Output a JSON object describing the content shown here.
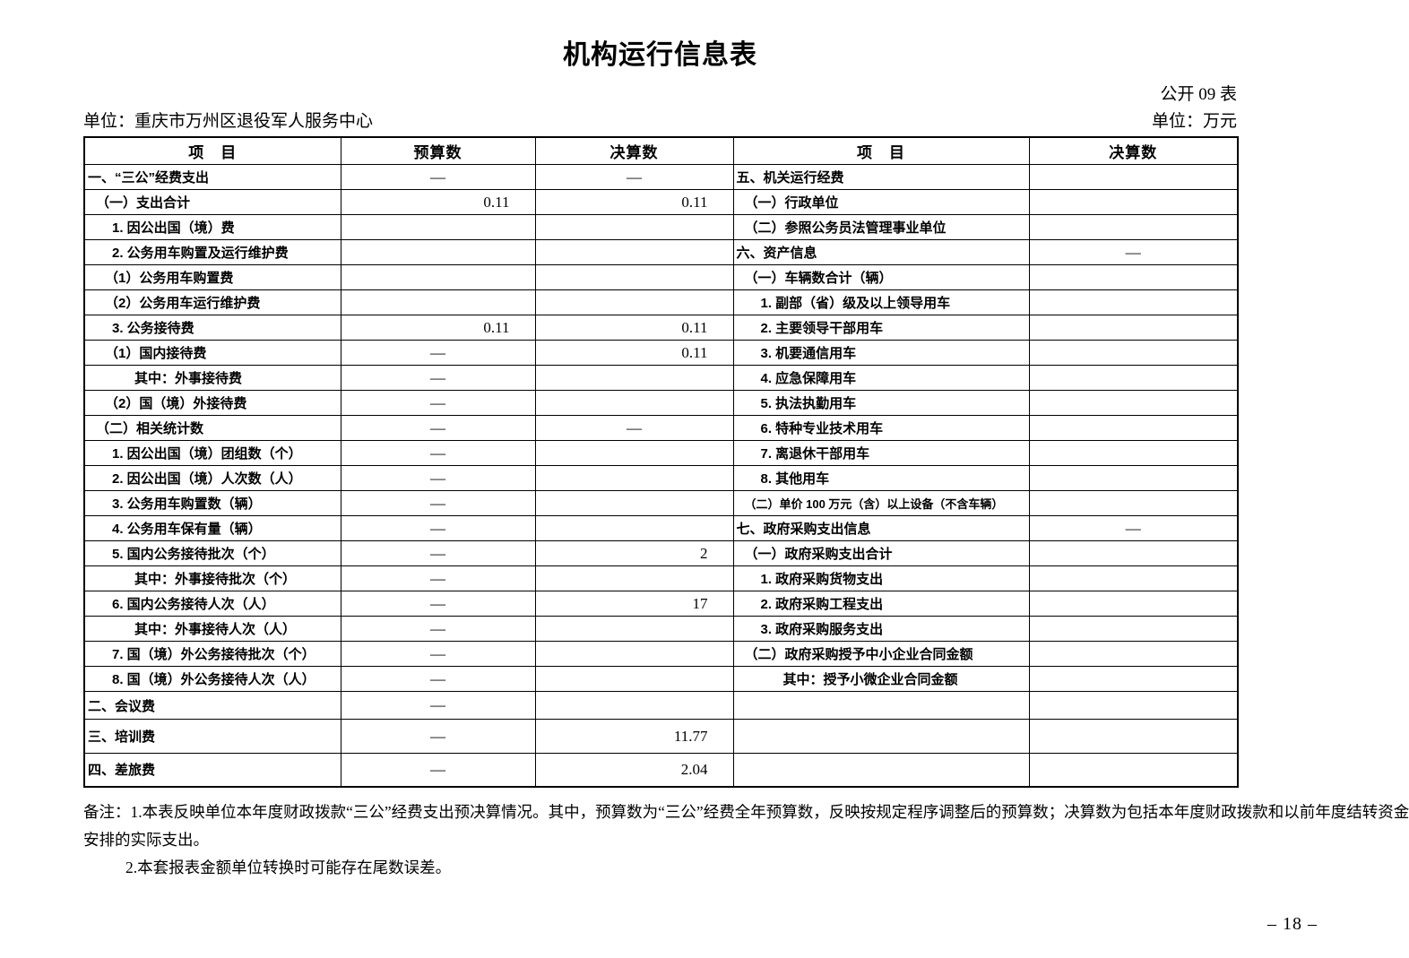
{
  "page": {
    "title": "机构运行信息表",
    "form_code": "公开 09 表",
    "unit_name": "单位：重庆市万州区退役军人服务中心",
    "unit_currency": "单位：万元",
    "page_number": "– 18 –"
  },
  "table": {
    "headers": [
      "项　目",
      "预算数",
      "决算数",
      "项　目",
      "决算数"
    ],
    "rows": [
      {
        "left": {
          "label": "一、“三公”经费支出",
          "indent": 0,
          "budget": "—",
          "final": "—"
        },
        "right": {
          "label": "五、机关运行经费",
          "indent": 0,
          "final": ""
        }
      },
      {
        "left": {
          "label": "（一）支出合计",
          "indent": 1,
          "budget": "0.11",
          "final": "0.11"
        },
        "right": {
          "label": "（一）行政单位",
          "indent": 1,
          "final": ""
        }
      },
      {
        "left": {
          "label": "1. 因公出国（境）费",
          "indent": 3,
          "budget": "",
          "final": ""
        },
        "right": {
          "label": "（二）参照公务员法管理事业单位",
          "indent": 1,
          "final": ""
        }
      },
      {
        "left": {
          "label": "2. 公务用车购置及运行维护费",
          "indent": 3,
          "budget": "",
          "final": ""
        },
        "right": {
          "label": "六、资产信息",
          "indent": 0,
          "final": "—"
        }
      },
      {
        "left": {
          "label": "（1）公务用车购置费",
          "indent": 2,
          "budget": "",
          "final": ""
        },
        "right": {
          "label": "（一）车辆数合计（辆）",
          "indent": 1,
          "final": ""
        }
      },
      {
        "left": {
          "label": "（2）公务用车运行维护费",
          "indent": 2,
          "budget": "",
          "final": ""
        },
        "right": {
          "label": "1. 副部（省）级及以上领导用车",
          "indent": 3,
          "final": ""
        }
      },
      {
        "left": {
          "label": "3. 公务接待费",
          "indent": 3,
          "budget": "0.11",
          "final": "0.11"
        },
        "right": {
          "label": "2. 主要领导干部用车",
          "indent": 3,
          "final": ""
        }
      },
      {
        "left": {
          "label": "（1）国内接待费",
          "indent": 2,
          "budget": "—",
          "final": "0.11"
        },
        "right": {
          "label": "3. 机要通信用车",
          "indent": 3,
          "final": ""
        }
      },
      {
        "left": {
          "label": "其中：外事接待费",
          "indent": 4,
          "budget": "—",
          "final": ""
        },
        "right": {
          "label": "4. 应急保障用车",
          "indent": 3,
          "final": ""
        }
      },
      {
        "left": {
          "label": "（2）国（境）外接待费",
          "indent": 2,
          "budget": "—",
          "final": ""
        },
        "right": {
          "label": "5. 执法执勤用车",
          "indent": 3,
          "final": ""
        }
      },
      {
        "left": {
          "label": "（二）相关统计数",
          "indent": 1,
          "budget": "—",
          "final": "—"
        },
        "right": {
          "label": "6. 特种专业技术用车",
          "indent": 3,
          "final": ""
        }
      },
      {
        "left": {
          "label": "1. 因公出国（境）团组数（个）",
          "indent": 3,
          "budget": "—",
          "final": ""
        },
        "right": {
          "label": "7. 离退休干部用车",
          "indent": 3,
          "final": ""
        }
      },
      {
        "left": {
          "label": "2. 因公出国（境）人次数（人）",
          "indent": 3,
          "budget": "—",
          "final": ""
        },
        "right": {
          "label": "8. 其他用车",
          "indent": 3,
          "final": ""
        }
      },
      {
        "left": {
          "label": "3. 公务用车购置数（辆）",
          "indent": 3,
          "budget": "—",
          "final": ""
        },
        "right": {
          "label": "（二）单价 100 万元（含）以上设备（不含车辆）",
          "indent": 1,
          "final": ""
        }
      },
      {
        "left": {
          "label": "4. 公务用车保有量（辆）",
          "indent": 3,
          "budget": "—",
          "final": ""
        },
        "right": {
          "label": "七、政府采购支出信息",
          "indent": 0,
          "final": "—"
        }
      },
      {
        "left": {
          "label": "5. 国内公务接待批次（个）",
          "indent": 3,
          "budget": "—",
          "final": "2"
        },
        "right": {
          "label": "（一）政府采购支出合计",
          "indent": 1,
          "final": ""
        }
      },
      {
        "left": {
          "label": "其中：外事接待批次（个）",
          "indent": 4,
          "budget": "—",
          "final": ""
        },
        "right": {
          "label": "1. 政府采购货物支出",
          "indent": 3,
          "final": ""
        }
      },
      {
        "left": {
          "label": "6. 国内公务接待人次（人）",
          "indent": 3,
          "budget": "—",
          "final": "17"
        },
        "right": {
          "label": "2. 政府采购工程支出",
          "indent": 3,
          "final": ""
        }
      },
      {
        "left": {
          "label": "其中：外事接待人次（人）",
          "indent": 4,
          "budget": "—",
          "final": ""
        },
        "right": {
          "label": "3. 政府采购服务支出",
          "indent": 3,
          "final": ""
        }
      },
      {
        "left": {
          "label": "7. 国（境）外公务接待批次（个）",
          "indent": 3,
          "budget": "—",
          "final": ""
        },
        "right": {
          "label": "（二）政府采购授予中小企业合同金额",
          "indent": 1,
          "final": ""
        }
      },
      {
        "left": {
          "label": "8. 国（境）外公务接待人次（人）",
          "indent": 3,
          "budget": "—",
          "final": ""
        },
        "right": {
          "label": "其中：授予小微企业合同金额",
          "indent": 4,
          "final": ""
        }
      },
      {
        "left": {
          "label": "二、会议费",
          "indent": 0,
          "budget": "—",
          "final": ""
        },
        "right": {
          "label": "",
          "indent": 0,
          "final": ""
        }
      },
      {
        "left": {
          "label": "三、培训费",
          "indent": 0,
          "budget": "—",
          "final": "11.77"
        },
        "right": {
          "label": "",
          "indent": 0,
          "final": ""
        }
      },
      {
        "left": {
          "label": "四、差旅费",
          "indent": 0,
          "budget": "—",
          "final": "2.04"
        },
        "right": {
          "label": "",
          "indent": 0,
          "final": ""
        }
      }
    ]
  },
  "notes": {
    "lines": [
      "备注：1.本表反映单位本年度财政拨款“三公”经费支出预决算情况。其中，预算数为“三公”经费全年预算数，反映按规定程序调整后的预算数；决算数为包括本年度财政拨款和以前年度结转资金",
      "安排的实际支出。",
      "2.本套报表金额单位转换时可能存在尾数误差。"
    ]
  }
}
